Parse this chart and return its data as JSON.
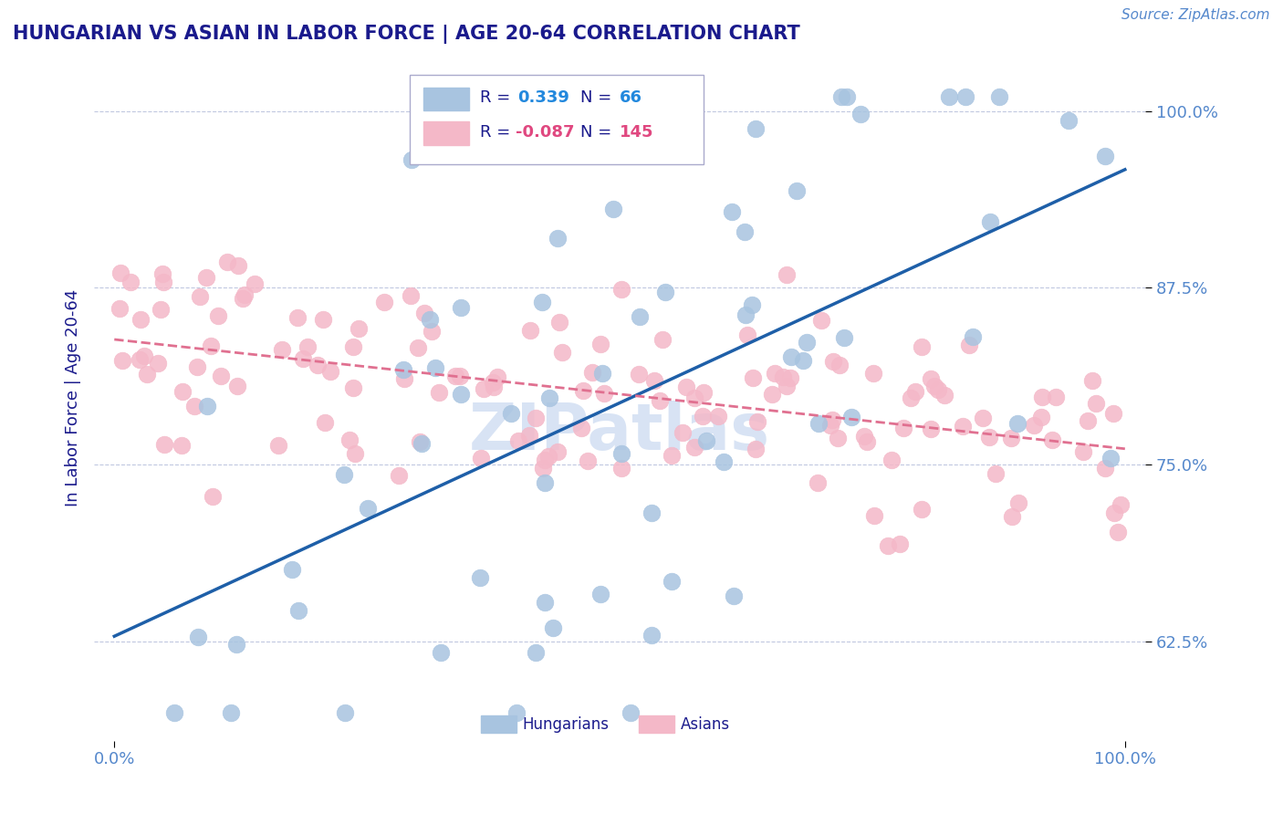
{
  "title": "HUNGARIAN VS ASIAN IN LABOR FORCE | AGE 20-64 CORRELATION CHART",
  "source_text": "Source: ZipAtlas.com",
  "ylabel": "In Labor Force | Age 20-64",
  "hungarian_R": 0.339,
  "hungarian_N": 66,
  "asian_R": -0.087,
  "asian_N": 145,
  "hungarian_color": "#a8c4e0",
  "asian_color": "#f4b8c8",
  "hungarian_line_color": "#1e5fa8",
  "asian_line_color": "#e07090",
  "watermark": "ZIPatlas",
  "watermark_color": "#c8d8f0",
  "title_color": "#1a1a8c",
  "axis_label_color": "#1a1a8c",
  "tick_color": "#5588cc",
  "grid_color": "#c0c8e0",
  "legend_text_color": "#1a1a8c",
  "hun_value_color": "#2288dd",
  "asian_value_color": "#e04880",
  "background_color": "#ffffff"
}
